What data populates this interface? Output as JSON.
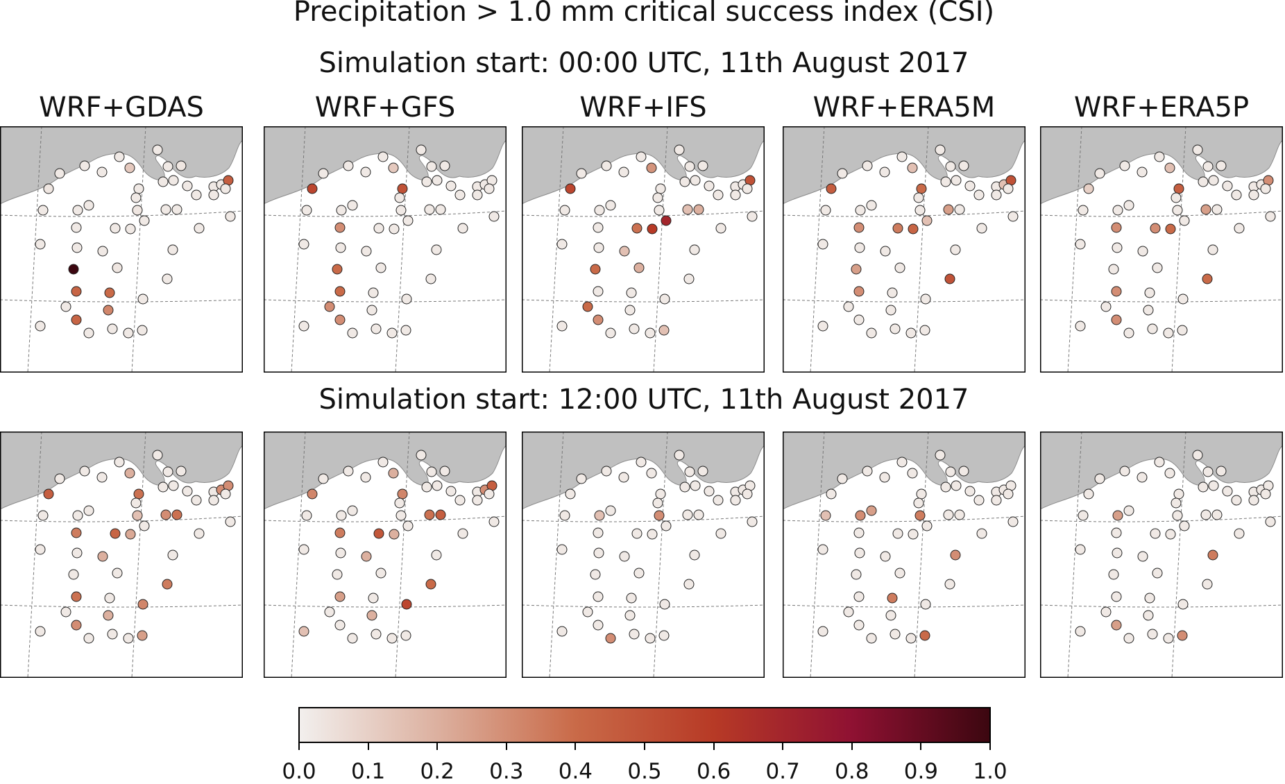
{
  "title": "Precipitation > 1.0 mm critical success index (CSI)",
  "rows": [
    {
      "label": "Simulation start: 00:00 UTC, 11th August 2017"
    },
    {
      "label": "Simulation start: 12:00 UTC, 11th August 2017"
    }
  ],
  "panels": [
    "WRF+GDAS",
    "WRF+GFS",
    "WRF+IFS",
    "WRF+ERA5M",
    "WRF+ERA5P"
  ],
  "colormap": {
    "name": "Reds",
    "stops": [
      "#f2efed",
      "#dcb09f",
      "#c96a48",
      "#b73a26",
      "#8f1132",
      "#3c0710"
    ]
  },
  "colorbar": {
    "min": 0.0,
    "max": 1.0,
    "ticks": [
      "0.0",
      "0.1",
      "0.2",
      "0.3",
      "0.4",
      "0.5",
      "0.6",
      "0.7",
      "0.8",
      "0.9",
      "1.0"
    ]
  },
  "chart_data": {
    "type": "scatter",
    "description_fields": [
      "station csi values per panel"
    ],
    "values": [
      [
        [
          0.02,
          0.02,
          0.03,
          0.02,
          0.12,
          0.02,
          0.02,
          0.02,
          0.03,
          0.02,
          0.02,
          0.02,
          0.02,
          0.02,
          0.02,
          0.02,
          0.02,
          0.45,
          0.02,
          0.02,
          0.02,
          0.02,
          0.02,
          0.03,
          0.02,
          0.02,
          0.02,
          0.02,
          0.02,
          0.02,
          0.02,
          0.02,
          0.02,
          0.02,
          0.02,
          0.02,
          1.0,
          0.03,
          0.02,
          0.02,
          0.42,
          0.4,
          0.02,
          0.32,
          0.02,
          0.42,
          0.02,
          0.02,
          0.02,
          0.02
        ],
        [
          0.02,
          0.02,
          0.02,
          0.02,
          0.12,
          0.02,
          0.02,
          0.02,
          0.55,
          0.5,
          0.02,
          0.02,
          0.02,
          0.02,
          0.02,
          0.02,
          0.02,
          0.02,
          0.02,
          0.02,
          0.02,
          0.02,
          0.02,
          0.02,
          0.02,
          0.02,
          0.02,
          0.3,
          0.02,
          0.02,
          0.02,
          0.02,
          0.02,
          0.02,
          0.02,
          0.02,
          0.4,
          0.02,
          0.02,
          0.02,
          0.4,
          0.02,
          0.3,
          0.02,
          0.02,
          0.3,
          0.02,
          0.02,
          0.02,
          0.02
        ],
        [
          0.02,
          0.02,
          0.02,
          0.02,
          0.28,
          0.02,
          0.02,
          0.02,
          0.55,
          0.02,
          0.02,
          0.02,
          0.02,
          0.02,
          0.02,
          0.02,
          0.02,
          0.5,
          0.02,
          0.02,
          0.02,
          0.02,
          0.02,
          0.02,
          0.15,
          0.2,
          0.02,
          0.02,
          0.38,
          0.6,
          0.7,
          0.02,
          0.02,
          0.02,
          0.15,
          0.02,
          0.4,
          0.2,
          0.02,
          0.02,
          0.02,
          0.02,
          0.4,
          0.02,
          0.02,
          0.3,
          0.02,
          0.02,
          0.02,
          0.15
        ],
        [
          0.02,
          0.02,
          0.02,
          0.02,
          0.15,
          0.02,
          0.02,
          0.02,
          0.45,
          0.4,
          0.02,
          0.02,
          0.02,
          0.02,
          0.02,
          0.02,
          0.15,
          0.5,
          0.02,
          0.02,
          0.02,
          0.02,
          0.02,
          0.02,
          0.25,
          0.02,
          0.02,
          0.3,
          0.35,
          0.42,
          0.15,
          0.02,
          0.02,
          0.02,
          0.02,
          0.02,
          0.25,
          0.02,
          0.5,
          0.02,
          0.3,
          0.02,
          0.02,
          0.02,
          0.02,
          0.02,
          0.02,
          0.02,
          0.02,
          0.02
        ],
        [
          0.02,
          0.02,
          0.02,
          0.02,
          0.15,
          0.02,
          0.02,
          0.02,
          0.1,
          0.45,
          0.02,
          0.02,
          0.02,
          0.02,
          0.02,
          0.02,
          0.02,
          0.3,
          0.02,
          0.02,
          0.02,
          0.02,
          0.02,
          0.02,
          0.25,
          0.02,
          0.02,
          0.3,
          0.3,
          0.4,
          0.02,
          0.02,
          0.02,
          0.02,
          0.02,
          0.02,
          0.02,
          0.02,
          0.4,
          0.02,
          0.3,
          0.02,
          0.02,
          0.02,
          0.02,
          0.3,
          0.02,
          0.02,
          0.02,
          0.02
        ]
      ],
      [
        [
          0.02,
          0.02,
          0.02,
          0.02,
          0.2,
          0.02,
          0.02,
          0.02,
          0.45,
          0.38,
          0.02,
          0.02,
          0.02,
          0.02,
          0.02,
          0.02,
          0.3,
          0.3,
          0.02,
          0.02,
          0.02,
          0.02,
          0.02,
          0.15,
          0.3,
          0.38,
          0.02,
          0.35,
          0.42,
          0.22,
          0.02,
          0.02,
          0.02,
          0.02,
          0.2,
          0.02,
          0.02,
          0.02,
          0.35,
          0.32,
          0.38,
          0.02,
          0.02,
          0.2,
          0.02,
          0.3,
          0.02,
          0.02,
          0.02,
          0.25
        ],
        [
          0.02,
          0.02,
          0.02,
          0.02,
          0.2,
          0.02,
          0.02,
          0.02,
          0.32,
          0.32,
          0.02,
          0.02,
          0.02,
          0.02,
          0.02,
          0.02,
          0.3,
          0.45,
          0.02,
          0.02,
          0.02,
          0.02,
          0.02,
          0.02,
          0.38,
          0.45,
          0.02,
          0.35,
          0.48,
          0.2,
          0.02,
          0.02,
          0.02,
          0.02,
          0.2,
          0.02,
          0.02,
          0.02,
          0.4,
          0.55,
          0.25,
          0.02,
          0.02,
          0.2,
          0.15,
          0.02,
          0.02,
          0.02,
          0.02,
          0.02
        ],
        [
          0.02,
          0.02,
          0.02,
          0.02,
          0.02,
          0.02,
          0.02,
          0.02,
          0.02,
          0.02,
          0.02,
          0.02,
          0.02,
          0.02,
          0.02,
          0.02,
          0.02,
          0.02,
          0.02,
          0.02,
          0.02,
          0.02,
          0.15,
          0.3,
          0.02,
          0.02,
          0.02,
          0.02,
          0.02,
          0.02,
          0.02,
          0.02,
          0.02,
          0.02,
          0.02,
          0.02,
          0.02,
          0.02,
          0.02,
          0.02,
          0.02,
          0.02,
          0.02,
          0.02,
          0.02,
          0.02,
          0.02,
          0.3,
          0.02,
          0.02
        ],
        [
          0.02,
          0.02,
          0.02,
          0.02,
          0.02,
          0.02,
          0.02,
          0.02,
          0.02,
          0.02,
          0.02,
          0.02,
          0.02,
          0.02,
          0.02,
          0.02,
          0.02,
          0.02,
          0.02,
          0.02,
          0.25,
          0.15,
          0.3,
          0.35,
          0.02,
          0.02,
          0.02,
          0.02,
          0.02,
          0.02,
          0.02,
          0.02,
          0.02,
          0.02,
          0.02,
          0.3,
          0.02,
          0.02,
          0.02,
          0.02,
          0.02,
          0.35,
          0.02,
          0.02,
          0.02,
          0.02,
          0.02,
          0.02,
          0.02,
          0.4
        ],
        [
          0.02,
          0.02,
          0.02,
          0.02,
          0.02,
          0.02,
          0.02,
          0.02,
          0.02,
          0.02,
          0.02,
          0.02,
          0.02,
          0.02,
          0.02,
          0.02,
          0.02,
          0.02,
          0.02,
          0.02,
          0.02,
          0.02,
          0.25,
          0.02,
          0.02,
          0.02,
          0.02,
          0.02,
          0.02,
          0.02,
          0.02,
          0.02,
          0.02,
          0.02,
          0.02,
          0.35,
          0.02,
          0.02,
          0.02,
          0.02,
          0.02,
          0.02,
          0.02,
          0.02,
          0.02,
          0.25,
          0.02,
          0.02,
          0.02,
          0.3
        ]
      ]
    ]
  }
}
